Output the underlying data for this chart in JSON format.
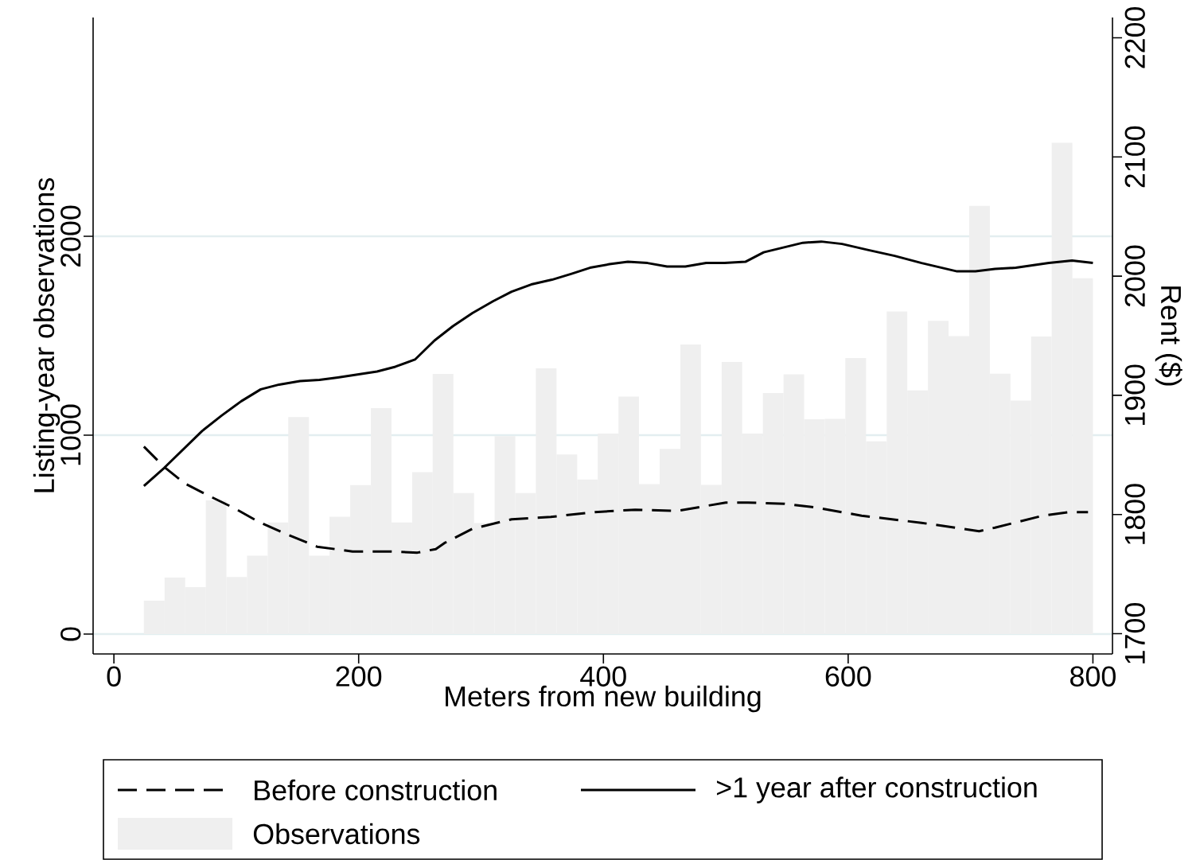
{
  "chart_data": {
    "type": "histogram",
    "xlabel": "Meters from new building",
    "ylabel": "Listing-year observations",
    "y2label": "Rent ($)",
    "xlim": [
      -17,
      816
    ],
    "xticks": [
      0,
      200,
      400,
      600,
      800
    ],
    "ylim": [
      -100,
      3100
    ],
    "yticks": [
      0,
      1000,
      2000
    ],
    "y2lim": [
      1683,
      2217
    ],
    "y2ticks": [
      1700,
      1800,
      1900,
      2000,
      2100,
      2200
    ],
    "grid": "y",
    "legend": "bottom",
    "series": [
      {
        "name": "Before construction",
        "type": "line",
        "axis": "y2",
        "line_style": "dashed",
        "color": "#000000",
        "x": [
          24.5,
          41,
          58,
          77,
          99,
          118,
          140,
          166,
          195,
          227,
          248,
          263,
          270,
          293,
          325,
          357,
          393,
          426,
          460,
          500,
          518,
          548,
          573,
          611,
          660,
          707,
          720,
          759,
          781,
          796
        ],
        "values": [
          1857,
          1840,
          1826,
          1816,
          1805,
          1794,
          1784,
          1773,
          1769,
          1769,
          1768,
          1771,
          1776,
          1788,
          1796,
          1798,
          1802,
          1804,
          1803,
          1810,
          1810,
          1809,
          1806,
          1799,
          1793,
          1786,
          1789,
          1799,
          1802,
          1802
        ]
      },
      {
        "name": ">1 year after construction",
        "type": "line",
        "axis": "y2",
        "line_style": "solid",
        "color": "#000000",
        "x": [
          24.5,
          41,
          72,
          88,
          104,
          120,
          135,
          152,
          168,
          183,
          215,
          230,
          246,
          262,
          277,
          293,
          310,
          325,
          341,
          358,
          374,
          389,
          405,
          420,
          436,
          452,
          467,
          484,
          499,
          516,
          531,
          547,
          563,
          578,
          595,
          616,
          638,
          660,
          689,
          704,
          720,
          737,
          764,
          783,
          800
        ],
        "values": [
          1824,
          1839,
          1870,
          1883,
          1895,
          1905,
          1909,
          1912,
          1913,
          1915,
          1920,
          1924,
          1930,
          1946,
          1958,
          1969,
          1979,
          1987,
          1993,
          1997,
          2002,
          2007,
          2010,
          2012,
          2011,
          2008,
          2008,
          2011,
          2011,
          2012,
          2020,
          2024,
          2028,
          2029,
          2027,
          2022,
          2017,
          2011,
          2004,
          2004,
          2006,
          2007,
          2011,
          2013,
          2011
        ]
      },
      {
        "name": "Observations",
        "color": "#efefef",
        "bins": [
          24.5,
          41.4,
          58.2,
          75.1,
          91.9,
          108.8,
          125.7,
          142.5,
          159.4,
          176.2,
          193.1,
          210.0,
          226.8,
          243.7,
          260.5,
          277.4,
          294.3,
          311.1,
          328.0,
          344.8,
          361.7,
          378.6,
          395.4,
          412.3,
          429.1,
          446.0,
          462.9,
          479.7,
          496.6,
          513.4,
          530.3,
          547.2,
          564.0,
          580.9,
          597.7,
          614.6,
          631.5,
          648.3,
          665.2,
          682.0,
          698.9,
          715.8,
          732.6,
          749.5,
          766.3,
          783.2,
          800.0
        ],
        "values": [
          168,
          284,
          236,
          672,
          287,
          394,
          561,
          1091,
          394,
          590,
          749,
          1136,
          561,
          814,
          1308,
          709,
          558,
          995,
          709,
          1336,
          903,
          777,
          1008,
          1194,
          754,
          931,
          1456,
          750,
          1368,
          1008,
          1212,
          1306,
          1080,
          1082,
          1388,
          969,
          1622,
          1225,
          1575,
          1498,
          2153,
          1309,
          1174,
          1496,
          2470,
          1789
        ]
      }
    ]
  }
}
